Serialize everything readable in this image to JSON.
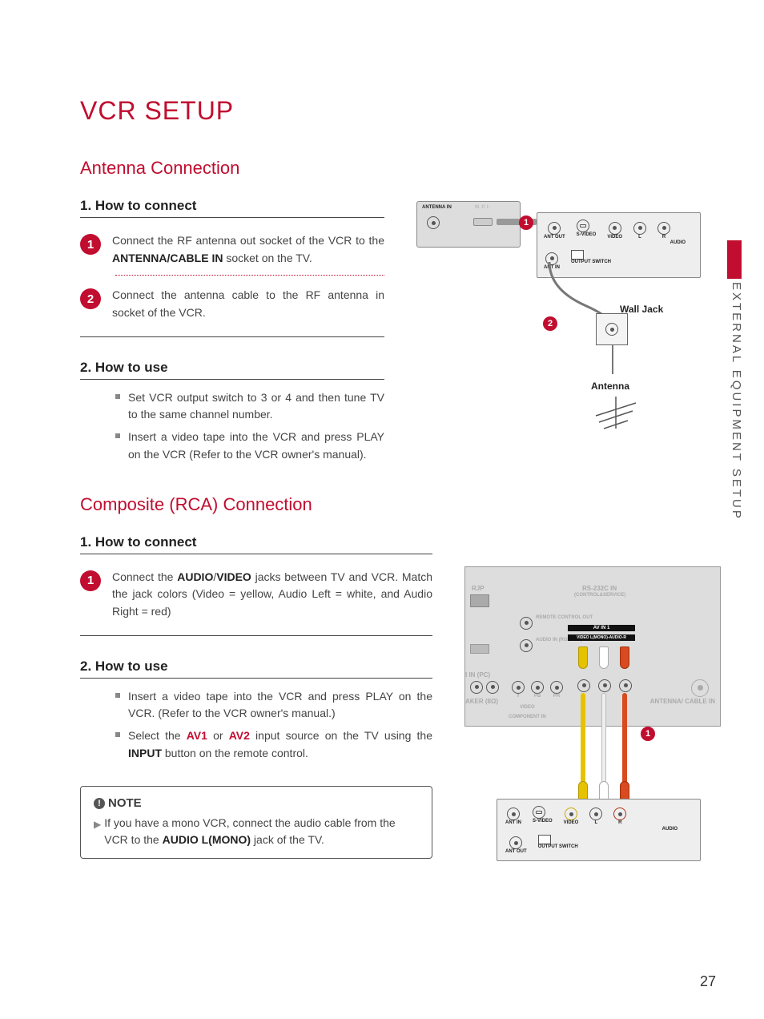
{
  "colors": {
    "accent": "#c10d2f",
    "text": "#3c3c3c",
    "mute": "#888888"
  },
  "pageNumber": "27",
  "sideLabel": "EXTERNAL EQUIPMENT SETUP",
  "title": "VCR SETUP",
  "section1": {
    "title": "Antenna Connection",
    "connect": {
      "heading": "1. How to connect",
      "steps": [
        {
          "n": "1",
          "html": "Connect the RF antenna out socket of the VCR to the <b>ANTENNA/CABLE IN</b> socket on the TV."
        },
        {
          "n": "2",
          "html": "Connect the antenna cable to the RF antenna in socket of the VCR."
        }
      ]
    },
    "use": {
      "heading": "2. How to use",
      "bullets": [
        "Set VCR output switch to 3 or 4 and then tune TV to the same channel number.",
        "Insert a video tape into the VCR and press PLAY on the VCR (Refer to the VCR owner's manual)."
      ]
    },
    "diagram": {
      "vcrLabels": {
        "antennaIn": "ANTENNA IN",
        "mpi": "M. P. I."
      },
      "tvLabels": [
        "ANT OUT",
        "S-VIDEO",
        "VIDEO",
        "L",
        "R",
        "AUDIO",
        "ANT IN",
        "OUTPUT SWITCH"
      ],
      "wallJack": "Wall Jack",
      "antenna": "Antenna",
      "badges": [
        "1",
        "2"
      ]
    }
  },
  "section2": {
    "title": "Composite (RCA) Connection",
    "connect": {
      "heading": "1. How to connect",
      "steps": [
        {
          "n": "1",
          "html": "Connect the <b>AUDIO</b>/<b>VIDEO</b> jacks between TV and VCR. Match the jack colors (Video = yellow, Audio Left = white, and Audio Right = red)"
        }
      ]
    },
    "use": {
      "heading": "2. How to use",
      "bullets": [
        "Insert a video tape into the VCR and press PLAY on the VCR. (Refer to the VCR owner's manual.)",
        "Select the <span class='hl'>AV1</span> or <span class='hl'>AV2</span> input source on the TV using the <b>INPUT</b> button on the remote control."
      ]
    },
    "diagram": {
      "tvBackLabels": {
        "rjp": "RJP",
        "rs232": "RS-232C IN",
        "rs232sub": "(CONTROL&SERVICE)",
        "remote": "REMOTE CONTROL OUT",
        "audioIn": "AUDIO IN (RGB/DVI)",
        "inPc": "I IN (PC)",
        "speaker": "AKER (8Ω)",
        "avin1": "AV IN 1",
        "avStrip": "VIDEO  L(MONO)-AUDIO-R",
        "antenna": "ANTENNA/ CABLE IN",
        "y": "Y",
        "pb": "PB",
        "pr": "PR",
        "video": "VIDEO",
        "component": "COMPONENT IN"
      },
      "vcrLabels": [
        "ANT IN",
        "S-VIDEO",
        "VIDEO",
        "L",
        "R",
        "AUDIO",
        "ANT OUT",
        "OUTPUT SWITCH"
      ],
      "cableColors": {
        "video": "#e6c200",
        "left": "#ffffff",
        "right": "#d84a1f"
      },
      "badge": "1"
    }
  },
  "note": {
    "title": "NOTE",
    "html": "If you have a mono VCR, connect the audio cable from the VCR to the <b>AUDIO L(MONO)</b> jack of the TV."
  }
}
